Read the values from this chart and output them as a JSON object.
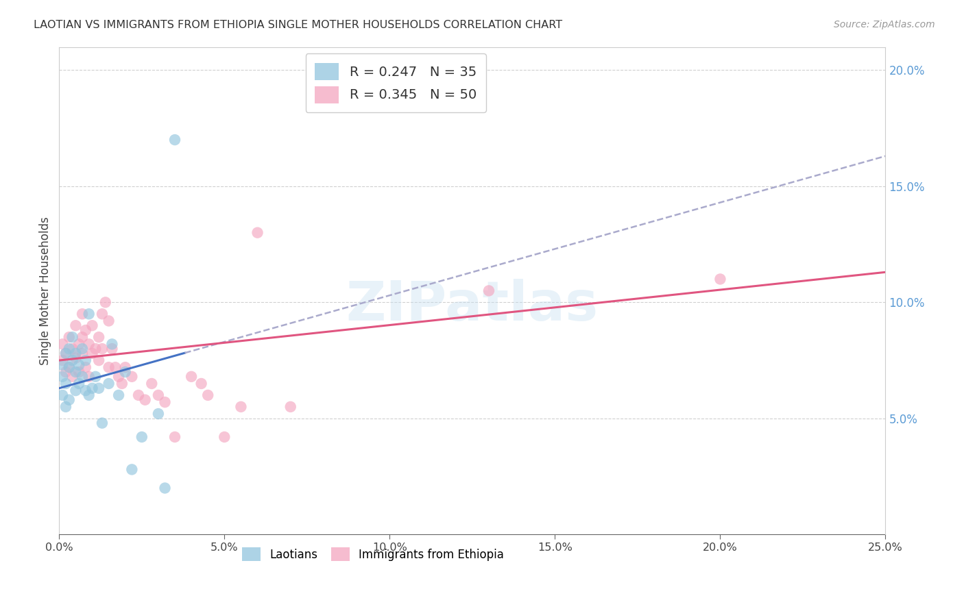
{
  "title": "LAOTIAN VS IMMIGRANTS FROM ETHIOPIA SINGLE MOTHER HOUSEHOLDS CORRELATION CHART",
  "source": "Source: ZipAtlas.com",
  "ylabel": "Single Mother Households",
  "xlim": [
    0,
    0.25
  ],
  "ylim": [
    0,
    0.21
  ],
  "xticks": [
    0.0,
    0.05,
    0.1,
    0.15,
    0.2,
    0.25
  ],
  "yticks_right": [
    0.05,
    0.1,
    0.15,
    0.2
  ],
  "blue_R": "0.247",
  "blue_N": "35",
  "pink_R": "0.345",
  "pink_N": "50",
  "blue_label": "Laotians",
  "pink_label": "Immigrants from Ethiopia",
  "background_color": "#ffffff",
  "grid_color": "#d0d0d0",
  "watermark": "ZIPatlas",
  "blue_color": "#92c5de",
  "pink_color": "#f4a6c0",
  "blue_line_color": "#4472c4",
  "blue_line_dash_color": "#aaaacc",
  "pink_line_color": "#e05580",
  "blue_scatter_x": [
    0.001,
    0.001,
    0.001,
    0.002,
    0.002,
    0.002,
    0.003,
    0.003,
    0.003,
    0.004,
    0.004,
    0.005,
    0.005,
    0.005,
    0.006,
    0.006,
    0.007,
    0.007,
    0.008,
    0.008,
    0.009,
    0.009,
    0.01,
    0.011,
    0.012,
    0.013,
    0.015,
    0.016,
    0.018,
    0.02,
    0.022,
    0.025,
    0.03,
    0.032,
    0.035
  ],
  "blue_scatter_y": [
    0.073,
    0.068,
    0.06,
    0.078,
    0.065,
    0.055,
    0.08,
    0.072,
    0.058,
    0.075,
    0.085,
    0.07,
    0.078,
    0.062,
    0.073,
    0.065,
    0.08,
    0.068,
    0.075,
    0.062,
    0.095,
    0.06,
    0.063,
    0.068,
    0.063,
    0.048,
    0.065,
    0.082,
    0.06,
    0.07,
    0.028,
    0.042,
    0.052,
    0.02,
    0.17
  ],
  "pink_scatter_x": [
    0.001,
    0.001,
    0.002,
    0.002,
    0.003,
    0.003,
    0.004,
    0.004,
    0.005,
    0.005,
    0.006,
    0.006,
    0.007,
    0.007,
    0.007,
    0.008,
    0.008,
    0.009,
    0.009,
    0.01,
    0.01,
    0.011,
    0.012,
    0.012,
    0.013,
    0.013,
    0.014,
    0.015,
    0.015,
    0.016,
    0.017,
    0.018,
    0.019,
    0.02,
    0.022,
    0.024,
    0.026,
    0.028,
    0.03,
    0.032,
    0.035,
    0.04,
    0.043,
    0.045,
    0.05,
    0.055,
    0.06,
    0.07,
    0.13,
    0.2
  ],
  "pink_scatter_y": [
    0.082,
    0.075,
    0.078,
    0.07,
    0.085,
    0.072,
    0.08,
    0.068,
    0.09,
    0.076,
    0.082,
    0.07,
    0.095,
    0.085,
    0.078,
    0.072,
    0.088,
    0.082,
    0.068,
    0.078,
    0.09,
    0.08,
    0.085,
    0.075,
    0.095,
    0.08,
    0.1,
    0.092,
    0.072,
    0.08,
    0.072,
    0.068,
    0.065,
    0.072,
    0.068,
    0.06,
    0.058,
    0.065,
    0.06,
    0.057,
    0.042,
    0.068,
    0.065,
    0.06,
    0.042,
    0.055,
    0.13,
    0.055,
    0.105,
    0.11
  ],
  "blue_line_x0": 0.0,
  "blue_line_y0": 0.063,
  "blue_line_x1": 0.25,
  "blue_line_y1": 0.163,
  "pink_line_x0": 0.0,
  "pink_line_y0": 0.075,
  "pink_line_x1": 0.25,
  "pink_line_y1": 0.113
}
